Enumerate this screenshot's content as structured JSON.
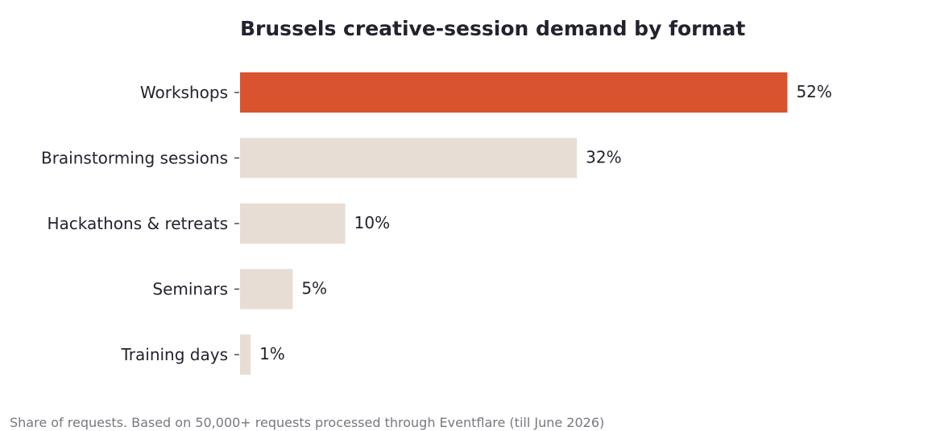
{
  "chart_data": {
    "type": "bar",
    "orientation": "horizontal",
    "title": "Brussels creative-session demand by format",
    "categories": [
      "Workshops",
      "Brainstorming sessions",
      "Hackathons & retreats",
      "Seminars",
      "Training days"
    ],
    "values": [
      52,
      32,
      10,
      5,
      1
    ],
    "value_labels": [
      "52%",
      "32%",
      "10%",
      "5%",
      "1%"
    ],
    "value_unit": "%",
    "xlim": [
      0,
      60
    ],
    "grid": false,
    "highlight_index": 0,
    "colors": {
      "highlight": "#d9532e",
      "default": "#e8ddd4",
      "text": "#23232f",
      "note": "#777780"
    }
  },
  "footnote": "Share of requests. Based on 50,000+ requests processed through Eventflare (till June 2026)"
}
